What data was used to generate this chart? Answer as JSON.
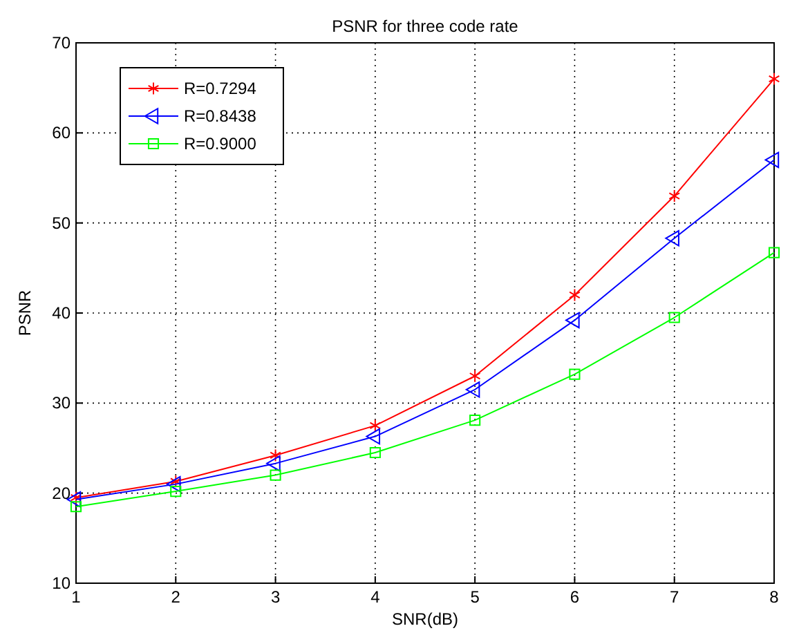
{
  "chart_data": {
    "type": "line",
    "title": "PSNR for three code rate",
    "xlabel": "SNR(dB)",
    "ylabel": "PSNR",
    "x": [
      1,
      2,
      3,
      4,
      5,
      6,
      7,
      8
    ],
    "series": [
      {
        "name": "R=0.7294",
        "color": "#ff0000",
        "marker": "cross",
        "values": [
          19.5,
          21.3,
          24.2,
          27.5,
          33,
          42,
          53,
          66
        ]
      },
      {
        "name": "R=0.8438",
        "color": "#0000ff",
        "marker": "triangle",
        "values": [
          19.3,
          21,
          23.3,
          26.3,
          31.5,
          39.2,
          48.3,
          57
        ]
      },
      {
        "name": "R=0.9000",
        "color": "#00ff00",
        "marker": "square",
        "values": [
          18.5,
          20.2,
          22,
          24.5,
          28.1,
          33.2,
          39.5,
          46.7
        ]
      }
    ],
    "xlim": [
      1,
      8
    ],
    "xticks": [
      1,
      2,
      3,
      4,
      5,
      6,
      7,
      8
    ],
    "ylim": [
      10,
      70
    ],
    "yticks": [
      10,
      20,
      30,
      40,
      50,
      60,
      70
    ],
    "grid": true,
    "line_style": "solid",
    "legend": "top left"
  }
}
